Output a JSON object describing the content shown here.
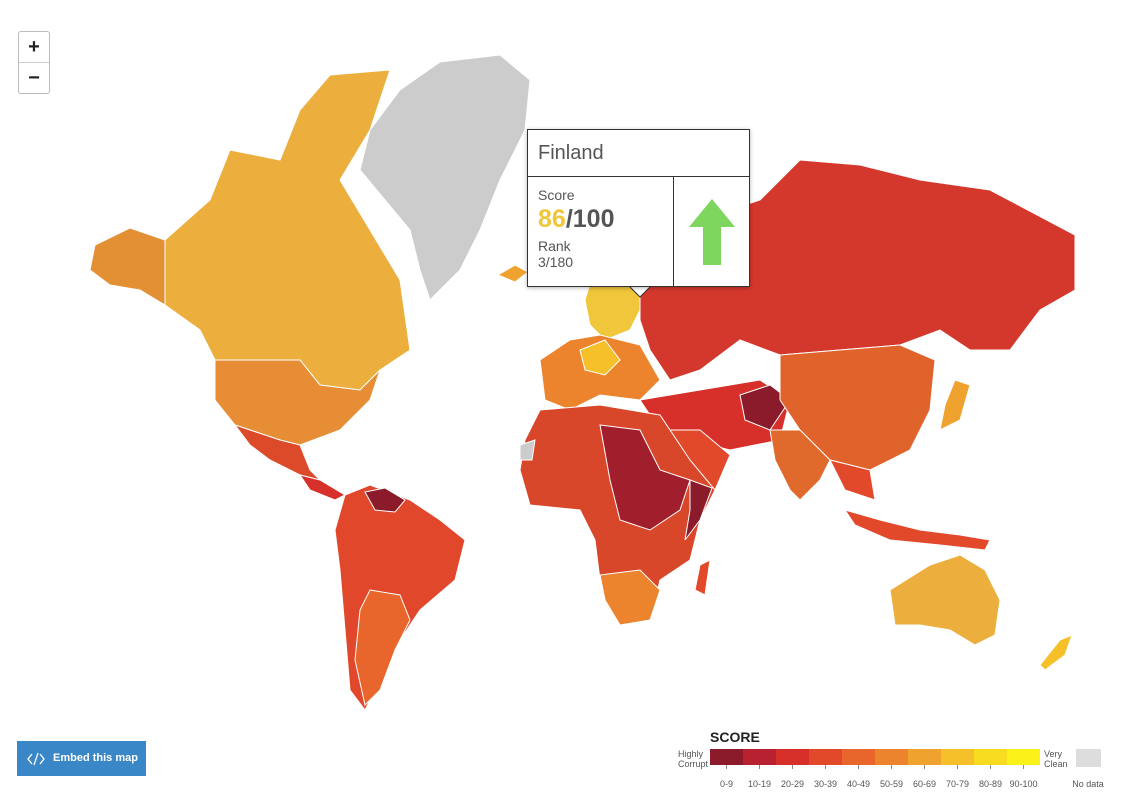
{
  "zoom": {
    "zoom_in": "+",
    "zoom_out": "−"
  },
  "tooltip": {
    "country": "Finland",
    "score_label": "Score",
    "score": 86,
    "score_out_of": "/100",
    "rank_label": "Rank",
    "rank": "3/180"
  },
  "embed_button": "Embed this map",
  "legend": {
    "title": "SCORE",
    "low_end": [
      "Highly",
      "Corrupt"
    ],
    "high_end": [
      "Very",
      "Clean"
    ],
    "no_data": "No data",
    "bins": [
      {
        "label": "0-9",
        "color": "#8b1a2b"
      },
      {
        "label": "10-19",
        "color": "#b8212f"
      },
      {
        "label": "20-29",
        "color": "#d7302b"
      },
      {
        "label": "30-39",
        "color": "#e2482a"
      },
      {
        "label": "40-49",
        "color": "#e8652b"
      },
      {
        "label": "50-59",
        "color": "#ec842d"
      },
      {
        "label": "60-69",
        "color": "#f0a22f"
      },
      {
        "label": "70-79",
        "color": "#f5c02a"
      },
      {
        "label": "80-89",
        "color": "#f8dc1f"
      },
      {
        "label": "90-100",
        "color": "#fbf21a"
      }
    ]
  }
}
